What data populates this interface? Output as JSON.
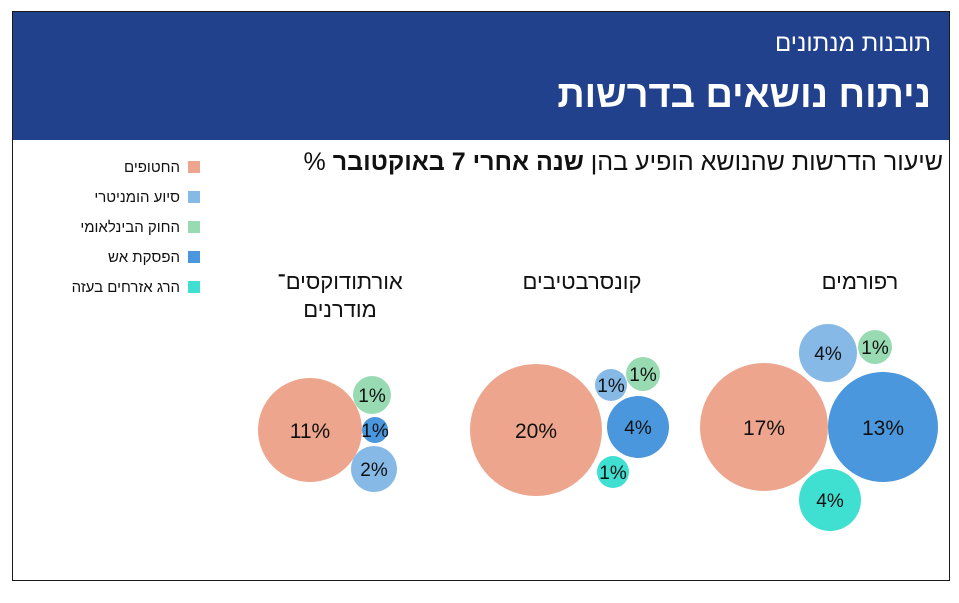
{
  "header": {
    "kicker": "תובנות מנתונים",
    "title": "ניתוח נושאים בדרשות"
  },
  "subtitle": {
    "prefix": "שיעור הדרשות שהנושא הופיע בהן ",
    "bold": "שנה אחרי 7 באוקטובר",
    "suffix": " %"
  },
  "chart_data": {
    "type": "bubble",
    "title": "שיעור הדרשות שהנושא הופיע בהן שנה אחרי 7 באוקטובר %",
    "topics": [
      "החטופים",
      "סיוע הומניטרי",
      "החוק הבינלאומי",
      "הפסקת אש",
      "הרג אזרחים בעזה"
    ],
    "colors": {
      "החטופים": "#eda68d",
      "סיוע הומניטרי": "#86b9e6",
      "החוק הבינלאומי": "#98dbb3",
      "הפסקת אש": "#4a97dd",
      "הרג אזרחים בעזה": "#3fdfd2"
    },
    "legend_position": "top-left",
    "groups": [
      {
        "name": "רפורמים",
        "values": {
          "החטופים": 17,
          "סיוע הומניטרי": 4,
          "החוק הבינלאומי": 1,
          "הפסקת אש": 13,
          "הרג אזרחים בעזה": 4
        },
        "labels": {
          "החטופים": "17%",
          "סיוע הומניטרי": "4%",
          "החוק הבינלאומי": "1%",
          "הפסקת אש": "13%",
          "הרג אזרחים בעזה": "4%"
        }
      },
      {
        "name": "קונסרבטיבים",
        "values": {
          "החטופים": 20,
          "סיוע הומניטרי": 1,
          "החוק הבינלאומי": 1,
          "הפסקת אש": 4,
          "הרג אזרחים בעזה": 1
        },
        "labels": {
          "החטופים": "20%",
          "סיוע הומניטרי": "1%",
          "החוק הבינלאומי": "1%",
          "הפסקת אש": "4%",
          "הרג אזרחים בעזה": "1%"
        }
      },
      {
        "name": "אורתודוקסים־ מודרנים",
        "values": {
          "החטופים": 11,
          "סיוע הומניטרי": 2,
          "החוק הבינלאומי": 1,
          "הפסקת אש": 1
        },
        "labels": {
          "החטופים": "11%",
          "סיוע הומניטרי": "2%",
          "החוק הבינלאומי": "1%",
          "הפסקת אש": "1%"
        }
      }
    ]
  }
}
